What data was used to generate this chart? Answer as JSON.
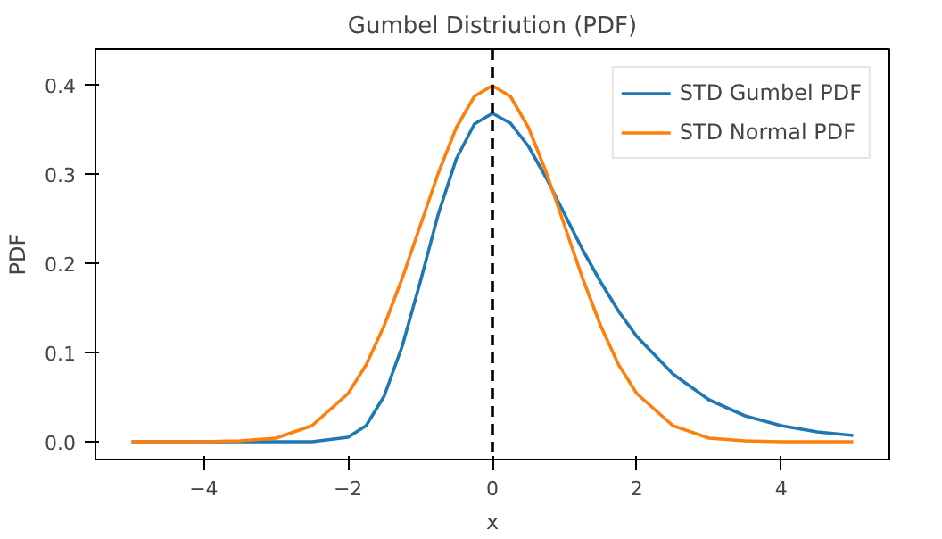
{
  "chart_data": {
    "type": "line",
    "title": "Gumbel Distriution (PDF)",
    "xlabel": "x",
    "ylabel": "PDF",
    "x": [
      -5,
      -4.5,
      -4,
      -3.5,
      -3,
      -2.5,
      -2,
      -1.75,
      -1.5,
      -1.25,
      -1,
      -0.75,
      -0.5,
      -0.25,
      0,
      0.25,
      0.5,
      0.75,
      1,
      1.25,
      1.5,
      1.75,
      2,
      2.5,
      3,
      3.5,
      4,
      4.5,
      5
    ],
    "series": [
      {
        "name": "STD Gumbel PDF",
        "color": "#1f77b4",
        "values": [
          0,
          0,
          0,
          0,
          0,
          0,
          0.005,
          0.018,
          0.051,
          0.107,
          0.179,
          0.255,
          0.317,
          0.356,
          0.368,
          0.357,
          0.331,
          0.295,
          0.255,
          0.215,
          0.179,
          0.146,
          0.118,
          0.076,
          0.047,
          0.029,
          0.018,
          0.011,
          0.007
        ]
      },
      {
        "name": "STD Normal PDF",
        "color": "#ff7f0e",
        "values": [
          0,
          0,
          0,
          0.001,
          0.004,
          0.018,
          0.054,
          0.086,
          0.13,
          0.183,
          0.242,
          0.301,
          0.352,
          0.387,
          0.399,
          0.387,
          0.352,
          0.301,
          0.242,
          0.183,
          0.13,
          0.086,
          0.054,
          0.018,
          0.004,
          0.001,
          0,
          0,
          0
        ]
      }
    ],
    "ref_lines": [
      {
        "axis": "x",
        "value": 0,
        "color": "#000000",
        "line_style": "dashed"
      }
    ],
    "xlim": [
      -5.5,
      5.5
    ],
    "ylim": [
      -0.02,
      0.44
    ],
    "xticks": [
      {
        "value": -4,
        "label": "−4"
      },
      {
        "value": -2,
        "label": "−2"
      },
      0,
      2,
      4
    ],
    "yticks": [
      {
        "value": 0,
        "label": "0.0"
      },
      0.1,
      0.2,
      0.3,
      0.4
    ],
    "legend": "top right",
    "line_style": "solid"
  }
}
